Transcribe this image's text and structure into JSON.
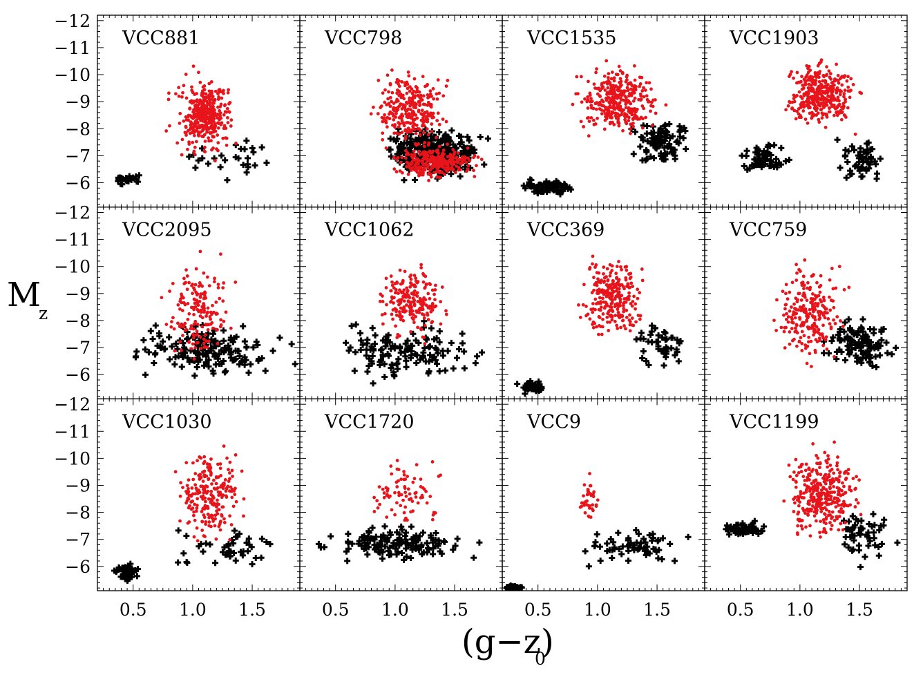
{
  "chart_data": {
    "type": "scatter",
    "layout": "3x4 grid of panels with shared axes",
    "xlabel": "(g−z)",
    "xlabel_subscript": "0",
    "ylabel": "M",
    "ylabel_subscript": "z",
    "xlim": [
      0.2,
      1.9
    ],
    "ylim": [
      -5.1,
      -12.2
    ],
    "y_inverted": true,
    "x_ticks": [
      0.5,
      1.0,
      1.5
    ],
    "x_tick_labels": [
      "0.5",
      "1.0",
      "1.5"
    ],
    "y_ticks": [
      -12,
      -11,
      -10,
      -9,
      -8,
      -7,
      -6
    ],
    "y_tick_labels": [
      "−12",
      "−11",
      "−10",
      "−9",
      "−8",
      "−7",
      "−6"
    ],
    "marker_styles": {
      "red": {
        "shape": "dot",
        "color": "#e8141b"
      },
      "black": {
        "shape": "plus",
        "color": "#000000"
      }
    },
    "panels": [
      {
        "name": "VCC881",
        "red_count": 420,
        "black_count": 55,
        "red_clusters": [
          {
            "x": [
              0.75,
              1.45
            ],
            "y": [
              -6.5,
              -10.5
            ]
          },
          {
            "x": [
              0.9,
              1.3
            ],
            "y": [
              -7.5,
              -9.5
            ]
          }
        ],
        "black_clusters": [
          {
            "x": [
              0.8,
              1.8
            ],
            "y": [
              -6.0,
              -8.0
            ]
          },
          {
            "x": [
              0.3,
              0.6
            ],
            "y": [
              -5.9,
              -6.4
            ]
          }
        ]
      },
      {
        "name": "VCC798",
        "red_count": 580,
        "black_count": 320,
        "red_clusters": [
          {
            "x": [
              0.75,
              1.5
            ],
            "y": [
              -7.0,
              -10.5
            ]
          },
          {
            "x": [
              0.9,
              1.8
            ],
            "y": [
              -6.0,
              -7.5
            ]
          }
        ],
        "black_clusters": [
          {
            "x": [
              0.8,
              1.85
            ],
            "y": [
              -5.9,
              -8.3
            ]
          }
        ]
      },
      {
        "name": "VCC1535",
        "red_count": 360,
        "black_count": 190,
        "red_clusters": [
          {
            "x": [
              0.75,
              1.6
            ],
            "y": [
              -7.5,
              -10.6
            ]
          }
        ],
        "black_clusters": [
          {
            "x": [
              1.2,
              1.85
            ],
            "y": [
              -6.3,
              -8.7
            ]
          },
          {
            "x": [
              0.3,
              0.9
            ],
            "y": [
              -5.5,
              -6.2
            ]
          }
        ]
      },
      {
        "name": "VCC1903",
        "red_count": 380,
        "black_count": 110,
        "red_clusters": [
          {
            "x": [
              0.8,
              1.55
            ],
            "y": [
              -7.8,
              -10.8
            ]
          }
        ],
        "black_clusters": [
          {
            "x": [
              1.2,
              1.8
            ],
            "y": [
              -5.8,
              -8.0
            ]
          },
          {
            "x": [
              0.4,
              1.0
            ],
            "y": [
              -6.0,
              -7.8
            ]
          }
        ]
      },
      {
        "name": "VCC2095",
        "red_count": 170,
        "black_count": 170,
        "red_clusters": [
          {
            "x": [
              0.7,
              1.4
            ],
            "y": [
              -6.0,
              -10.8
            ]
          }
        ],
        "black_clusters": [
          {
            "x": [
              0.3,
              1.9
            ],
            "y": [
              -5.6,
              -8.2
            ]
          }
        ]
      },
      {
        "name": "VCC1062",
        "red_count": 210,
        "black_count": 130,
        "red_clusters": [
          {
            "x": [
              0.8,
              1.5
            ],
            "y": [
              -7.0,
              -10.5
            ]
          }
        ],
        "black_clusters": [
          {
            "x": [
              0.3,
              1.9
            ],
            "y": [
              -5.4,
              -8.4
            ]
          }
        ]
      },
      {
        "name": "VCC369",
        "red_count": 260,
        "black_count": 90,
        "red_clusters": [
          {
            "x": [
              0.8,
              1.45
            ],
            "y": [
              -7.0,
              -10.8
            ]
          }
        ],
        "black_clusters": [
          {
            "x": [
              1.2,
              1.85
            ],
            "y": [
              -6.0,
              -8.2
            ]
          },
          {
            "x": [
              0.3,
              0.6
            ],
            "y": [
              -5.2,
              -5.8
            ]
          }
        ]
      },
      {
        "name": "VCC759",
        "red_count": 240,
        "black_count": 120,
        "red_clusters": [
          {
            "x": [
              0.7,
              1.45
            ],
            "y": [
              -6.0,
              -10.6
            ]
          }
        ],
        "black_clusters": [
          {
            "x": [
              1.15,
              1.85
            ],
            "y": [
              -6.0,
              -8.3
            ]
          }
        ]
      },
      {
        "name": "VCC1030",
        "red_count": 230,
        "black_count": 90,
        "red_clusters": [
          {
            "x": [
              0.8,
              1.5
            ],
            "y": [
              -6.5,
              -10.8
            ]
          }
        ],
        "black_clusters": [
          {
            "x": [
              0.7,
              1.9
            ],
            "y": [
              -5.7,
              -7.6
            ]
          },
          {
            "x": [
              0.3,
              0.6
            ],
            "y": [
              -5.3,
              -6.3
            ]
          }
        ]
      },
      {
        "name": "VCC1720",
        "red_count": 80,
        "black_count": 140,
        "red_clusters": [
          {
            "x": [
              0.7,
              1.5
            ],
            "y": [
              -7.3,
              -10.4
            ]
          }
        ],
        "black_clusters": [
          {
            "x": [
              0.2,
              1.9
            ],
            "y": [
              -5.9,
              -7.8
            ]
          }
        ]
      },
      {
        "name": "VCC9",
        "red_count": 40,
        "black_count": 130,
        "red_clusters": [
          {
            "x": [
              0.8,
              1.05
            ],
            "y": [
              -7.0,
              -9.8
            ]
          }
        ],
        "black_clusters": [
          {
            "x": [
              0.6,
              1.9
            ],
            "y": [
              -5.8,
              -7.7
            ]
          },
          {
            "x": [
              0.2,
              0.4
            ],
            "y": [
              -5.1,
              -5.3
            ]
          }
        ]
      },
      {
        "name": "VCC1199",
        "red_count": 340,
        "black_count": 110,
        "red_clusters": [
          {
            "x": [
              0.8,
              1.6
            ],
            "y": [
              -6.5,
              -10.8
            ]
          }
        ],
        "black_clusters": [
          {
            "x": [
              1.2,
              1.85
            ],
            "y": [
              -5.8,
              -8.4
            ]
          },
          {
            "x": [
              0.3,
              0.8
            ],
            "y": [
              -7.0,
              -7.8
            ]
          }
        ]
      }
    ]
  }
}
